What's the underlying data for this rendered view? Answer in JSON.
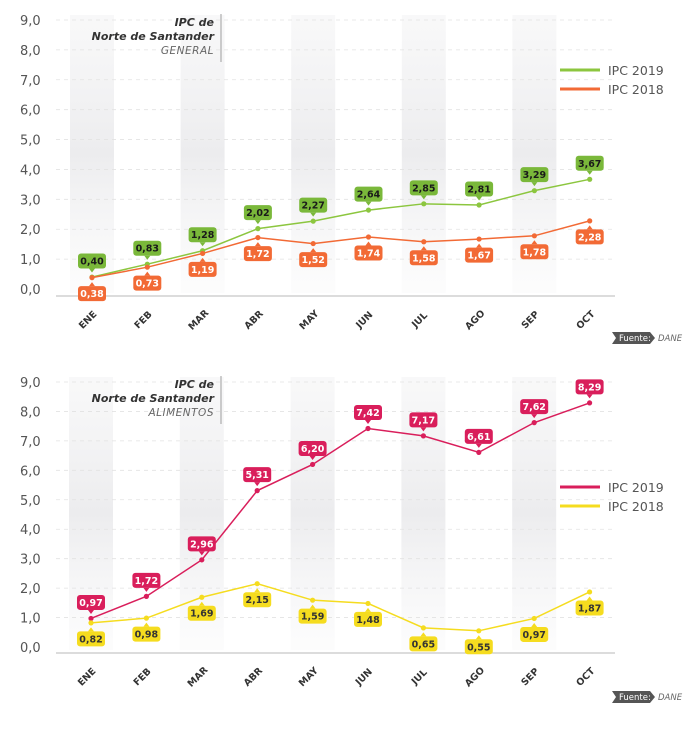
{
  "chart_data": [
    {
      "type": "line",
      "title": "IPC de",
      "title_line2": "Norte de Santander",
      "subtitle": "GENERAL",
      "xlabel": "",
      "ylabel": "",
      "categories": [
        "ENE",
        "FEB",
        "MAR",
        "ABR",
        "MAY",
        "JUN",
        "JUL",
        "AGO",
        "SEP",
        "OCT"
      ],
      "ylim": [
        0,
        9
      ],
      "yticks": [
        "0,0",
        "1,0",
        "2,0",
        "3,0",
        "4,0",
        "5,0",
        "6,0",
        "7,0",
        "8,0",
        "9,0"
      ],
      "grid": true,
      "legend_position": "right",
      "series": [
        {
          "name": "IPC 2019",
          "color": "#8cc63f",
          "label_color": "#7ab83a",
          "label_text_color": "#1a1a1a",
          "label_position": "above",
          "values": [
            0.4,
            0.83,
            1.28,
            2.02,
            2.27,
            2.64,
            2.85,
            2.81,
            3.29,
            3.67
          ],
          "labels": [
            "0,40",
            "0,83",
            "1,28",
            "2,02",
            "2,27",
            "2,64",
            "2,85",
            "2,81",
            "3,29",
            "3,67"
          ]
        },
        {
          "name": "IPC 2018",
          "color": "#f26a35",
          "label_color": "#f26a35",
          "label_text_color": "#ffffff",
          "label_position": "below",
          "values": [
            0.38,
            0.73,
            1.19,
            1.72,
            1.52,
            1.74,
            1.58,
            1.67,
            1.78,
            2.28
          ],
          "labels": [
            "0,38",
            "0,73",
            "1,19",
            "1,72",
            "1,52",
            "1,74",
            "1,58",
            "1,67",
            "1,78",
            "2,28"
          ]
        }
      ],
      "source_label": "Fuente:",
      "source_value": "DANE"
    },
    {
      "type": "line",
      "title": "IPC de",
      "title_line2": "Norte de Santander",
      "subtitle": "ALIMENTOS",
      "xlabel": "",
      "ylabel": "",
      "categories": [
        "ENE",
        "FEB",
        "MAR",
        "ABR",
        "MAY",
        "JUN",
        "JUL",
        "AGO",
        "SEP",
        "OCT"
      ],
      "ylim": [
        0,
        9
      ],
      "yticks": [
        "0,0",
        "1,0",
        "2,0",
        "3,0",
        "4,0",
        "5,0",
        "6,0",
        "7,0",
        "8,0",
        "9,0"
      ],
      "grid": true,
      "legend_position": "right",
      "series": [
        {
          "name": "IPC 2019",
          "color": "#d91e5b",
          "label_color": "#d91e5b",
          "label_text_color": "#ffffff",
          "label_position": "above",
          "values": [
            0.97,
            1.72,
            2.96,
            5.31,
            6.2,
            7.42,
            7.17,
            6.61,
            7.62,
            8.29
          ],
          "labels": [
            "0,97",
            "1,72",
            "2,96",
            "5,31",
            "6,20",
            "7,42",
            "7,17",
            "6,61",
            "7,62",
            "8,29"
          ]
        },
        {
          "name": "IPC 2018",
          "color": "#f5dc1f",
          "label_color": "#f5dc1f",
          "label_text_color": "#333333",
          "label_position": "below",
          "values": [
            0.82,
            0.98,
            1.69,
            2.15,
            1.59,
            1.48,
            0.65,
            0.55,
            0.97,
            1.87
          ],
          "labels": [
            "0,82",
            "0,98",
            "1,69",
            "2,15",
            "1,59",
            "1,48",
            "0,65",
            "0,55",
            "0,97",
            "1,87"
          ]
        }
      ],
      "source_label": "Fuente:",
      "source_value": "DANE"
    }
  ]
}
